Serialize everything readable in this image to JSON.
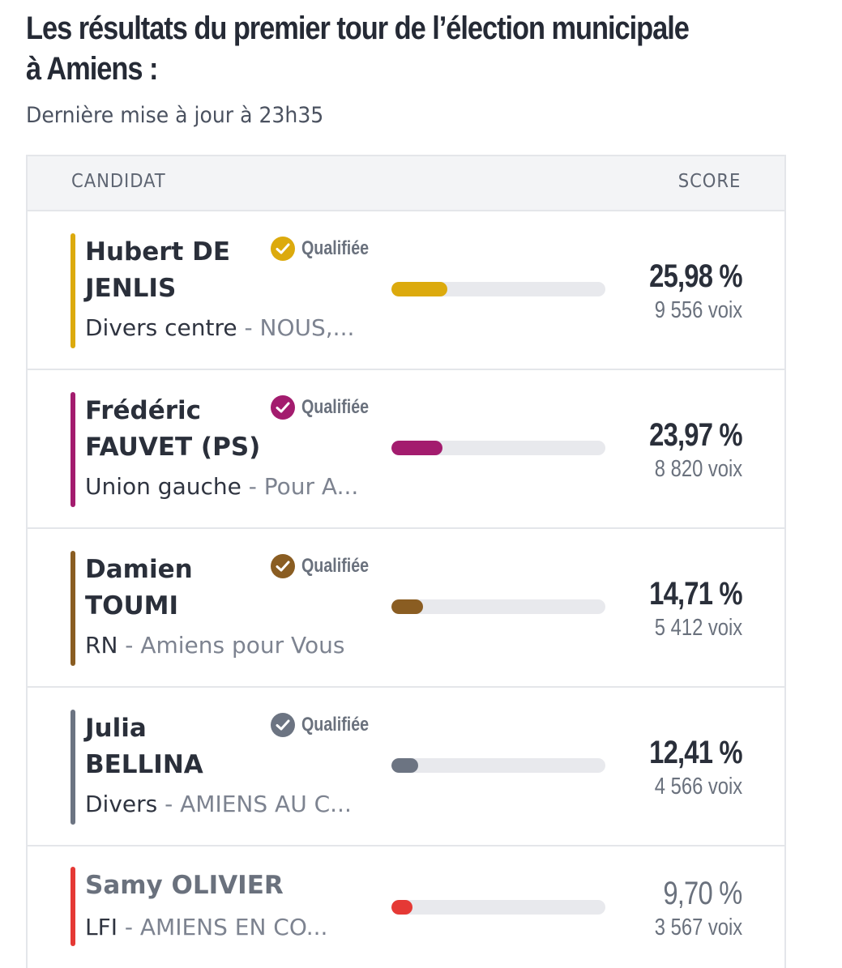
{
  "title": "Les résultats du premier tour de l’élection municipale à Amiens :",
  "updated": "Dernière mise à jour à 23h35",
  "table": {
    "col_candidat": "CANDIDAT",
    "col_score": "SCORE"
  },
  "qualified_label": "Qualifiée",
  "candidates": [
    {
      "name": "Hubert DE JENLIS",
      "nuance": "Divers centre",
      "sep": " - ",
      "liste": "NOUS,...",
      "qualified": true,
      "percent_label": "25,98 %",
      "percent": 25.98,
      "votes": "9 556 voix",
      "color": "#dcaa0d"
    },
    {
      "name": "Frédéric FAUVET (PS)",
      "nuance": "Union gauche",
      "sep": " - ",
      "liste": "Pour A...",
      "qualified": true,
      "percent_label": "23,97 %",
      "percent": 23.97,
      "votes": "8 820 voix",
      "color": "#a31c6e"
    },
    {
      "name": "Damien TOUMI",
      "nuance": "RN",
      "sep": " - ",
      "liste": "Amiens pour Vous",
      "qualified": true,
      "percent_label": "14,71 %",
      "percent": 14.71,
      "votes": "5 412 voix",
      "color": "#8a5d22"
    },
    {
      "name": "Julia BELLINA",
      "nuance": "Divers",
      "sep": " - ",
      "liste": "AMIENS AU C...",
      "qualified": true,
      "percent_label": "12,41 %",
      "percent": 12.41,
      "votes": "4 566 voix",
      "color": "#6c7482"
    },
    {
      "name": "Samy OLIVIER",
      "nuance": "LFI",
      "sep": " - ",
      "liste": "AMIENS EN CO...",
      "qualified": false,
      "percent_label": "9,70 %",
      "percent": 9.7,
      "votes": "3 567 voix",
      "color": "#e53935"
    }
  ]
}
